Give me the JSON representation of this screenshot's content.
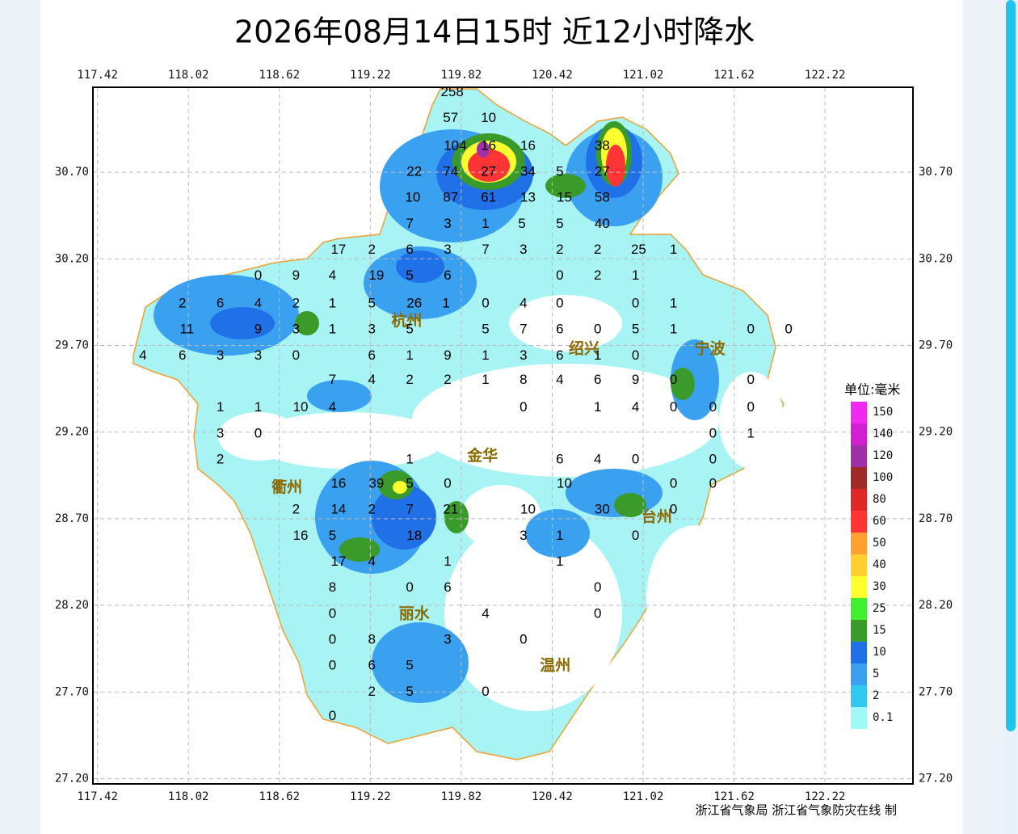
{
  "title": "2026年08月14日15时  近12小时降水",
  "footer": "浙江省气象局 浙江省气象防灾在线 制",
  "map": {
    "type": "station-map",
    "xlim": [
      117.39,
      122.8
    ],
    "ylim": [
      27.17,
      31.19
    ],
    "xticks": [
      117.42,
      118.02,
      118.62,
      119.22,
      119.82,
      120.42,
      121.02,
      121.62,
      122.22
    ],
    "yticks": [
      {
        "value": 30.7,
        "label": "30.70"
      },
      {
        "value": 30.2,
        "label": "30.20"
      },
      {
        "value": 29.7,
        "label": "29.70"
      },
      {
        "value": 29.2,
        "label": "29.20"
      },
      {
        "value": 28.7,
        "label": "28.70"
      },
      {
        "value": 28.2,
        "label": "28.20"
      },
      {
        "value": 27.7,
        "label": "27.70"
      },
      {
        "value": 27.2,
        "label": "27.20"
      }
    ],
    "grid": true,
    "cities": [
      {
        "name": "杭州",
        "lon": 119.46,
        "lat": 29.84
      },
      {
        "name": "绍兴",
        "lon": 120.63,
        "lat": 29.68
      },
      {
        "name": "宁波",
        "lon": 121.46,
        "lat": 29.68
      },
      {
        "name": "金华",
        "lon": 119.96,
        "lat": 29.06
      },
      {
        "name": "衢州",
        "lon": 118.67,
        "lat": 28.88
      },
      {
        "name": "台州",
        "lon": 121.11,
        "lat": 28.71
      },
      {
        "name": "丽水",
        "lon": 119.51,
        "lat": 28.15
      },
      {
        "name": "温州",
        "lon": 120.44,
        "lat": 27.85
      }
    ],
    "stations": [
      [
        119.76,
        31.16,
        258
      ],
      [
        119.75,
        31.01,
        57
      ],
      [
        120.0,
        31.01,
        10
      ],
      [
        119.78,
        30.85,
        104
      ],
      [
        120.0,
        30.85,
        16
      ],
      [
        120.26,
        30.85,
        16
      ],
      [
        120.75,
        30.85,
        38
      ],
      [
        119.51,
        30.7,
        22
      ],
      [
        119.75,
        30.7,
        74
      ],
      [
        120.0,
        30.7,
        27
      ],
      [
        120.26,
        30.7,
        34
      ],
      [
        120.47,
        30.7,
        5
      ],
      [
        120.75,
        30.7,
        27
      ],
      [
        119.5,
        30.55,
        10
      ],
      [
        119.75,
        30.55,
        87
      ],
      [
        120.0,
        30.55,
        61
      ],
      [
        120.26,
        30.55,
        13
      ],
      [
        120.5,
        30.55,
        15
      ],
      [
        120.75,
        30.55,
        58
      ],
      [
        119.48,
        30.4,
        7
      ],
      [
        119.73,
        30.4,
        3
      ],
      [
        119.98,
        30.4,
        1
      ],
      [
        120.22,
        30.4,
        5
      ],
      [
        120.47,
        30.4,
        5
      ],
      [
        120.75,
        30.4,
        40
      ],
      [
        119.01,
        30.25,
        17
      ],
      [
        119.23,
        30.25,
        2
      ],
      [
        119.48,
        30.25,
        6
      ],
      [
        119.73,
        30.25,
        3
      ],
      [
        119.98,
        30.25,
        7
      ],
      [
        120.23,
        30.25,
        3
      ],
      [
        120.47,
        30.25,
        2
      ],
      [
        120.72,
        30.25,
        2
      ],
      [
        120.99,
        30.25,
        25
      ],
      [
        121.22,
        30.25,
        1
      ],
      [
        118.48,
        30.1,
        0
      ],
      [
        118.73,
        30.1,
        9
      ],
      [
        118.97,
        30.1,
        4
      ],
      [
        119.26,
        30.1,
        19
      ],
      [
        119.48,
        30.1,
        5
      ],
      [
        119.73,
        30.1,
        6
      ],
      [
        120.47,
        30.1,
        0
      ],
      [
        120.72,
        30.1,
        2
      ],
      [
        120.97,
        30.1,
        1
      ],
      [
        117.98,
        29.94,
        2
      ],
      [
        118.23,
        29.94,
        6
      ],
      [
        118.48,
        29.94,
        4
      ],
      [
        118.73,
        29.94,
        2
      ],
      [
        118.97,
        29.94,
        1
      ],
      [
        119.23,
        29.94,
        5
      ],
      [
        119.51,
        29.94,
        26
      ],
      [
        119.72,
        29.94,
        1
      ],
      [
        119.98,
        29.94,
        0
      ],
      [
        120.23,
        29.94,
        4
      ],
      [
        120.47,
        29.94,
        0
      ],
      [
        120.97,
        29.94,
        0
      ],
      [
        121.22,
        29.94,
        1
      ],
      [
        118.01,
        29.79,
        11
      ],
      [
        118.48,
        29.79,
        9
      ],
      [
        118.73,
        29.79,
        3
      ],
      [
        118.97,
        29.79,
        1
      ],
      [
        119.23,
        29.79,
        3
      ],
      [
        119.48,
        29.79,
        5
      ],
      [
        119.98,
        29.79,
        5
      ],
      [
        120.23,
        29.79,
        7
      ],
      [
        120.47,
        29.79,
        6
      ],
      [
        120.72,
        29.79,
        0
      ],
      [
        120.97,
        29.79,
        5
      ],
      [
        121.22,
        29.79,
        1
      ],
      [
        121.73,
        29.79,
        0
      ],
      [
        121.98,
        29.79,
        0
      ],
      [
        117.72,
        29.64,
        4
      ],
      [
        117.98,
        29.64,
        6
      ],
      [
        118.23,
        29.64,
        3
      ],
      [
        118.48,
        29.64,
        3
      ],
      [
        118.73,
        29.64,
        0
      ],
      [
        119.23,
        29.64,
        6
      ],
      [
        119.48,
        29.64,
        1
      ],
      [
        119.73,
        29.64,
        9
      ],
      [
        119.98,
        29.64,
        1
      ],
      [
        120.23,
        29.64,
        3
      ],
      [
        120.47,
        29.64,
        6
      ],
      [
        120.72,
        29.64,
        1
      ],
      [
        120.97,
        29.64,
        0
      ],
      [
        118.97,
        29.5,
        7
      ],
      [
        119.23,
        29.5,
        4
      ],
      [
        119.48,
        29.5,
        2
      ],
      [
        119.73,
        29.5,
        2
      ],
      [
        119.98,
        29.5,
        1
      ],
      [
        120.23,
        29.5,
        8
      ],
      [
        120.47,
        29.5,
        4
      ],
      [
        120.72,
        29.5,
        6
      ],
      [
        120.97,
        29.5,
        9
      ],
      [
        121.22,
        29.5,
        0
      ],
      [
        121.73,
        29.5,
        0
      ],
      [
        118.23,
        29.34,
        1
      ],
      [
        118.48,
        29.34,
        1
      ],
      [
        118.76,
        29.34,
        10
      ],
      [
        118.97,
        29.34,
        4
      ],
      [
        120.23,
        29.34,
        0
      ],
      [
        120.72,
        29.34,
        1
      ],
      [
        120.97,
        29.34,
        4
      ],
      [
        121.22,
        29.34,
        0
      ],
      [
        121.48,
        29.34,
        0
      ],
      [
        121.73,
        29.34,
        0
      ],
      [
        118.23,
        29.19,
        3
      ],
      [
        118.48,
        29.19,
        0
      ],
      [
        121.48,
        29.19,
        0
      ],
      [
        121.73,
        29.19,
        1
      ],
      [
        118.23,
        29.04,
        2
      ],
      [
        119.48,
        29.04,
        1
      ],
      [
        120.47,
        29.04,
        6
      ],
      [
        120.72,
        29.04,
        4
      ],
      [
        120.97,
        29.04,
        0
      ],
      [
        121.48,
        29.04,
        0
      ],
      [
        119.01,
        28.9,
        16
      ],
      [
        119.26,
        28.9,
        39
      ],
      [
        119.48,
        28.9,
        5
      ],
      [
        119.73,
        28.9,
        0
      ],
      [
        120.5,
        28.9,
        10
      ],
      [
        121.22,
        28.9,
        0
      ],
      [
        121.48,
        28.9,
        0
      ],
      [
        118.73,
        28.75,
        2
      ],
      [
        119.01,
        28.75,
        14
      ],
      [
        119.23,
        28.75,
        2
      ],
      [
        119.48,
        28.75,
        7
      ],
      [
        119.75,
        28.75,
        21
      ],
      [
        120.26,
        28.75,
        10
      ],
      [
        120.75,
        28.75,
        30
      ],
      [
        121.22,
        28.75,
        0
      ],
      [
        118.76,
        28.6,
        16
      ],
      [
        118.97,
        28.6,
        5
      ],
      [
        119.51,
        28.6,
        18
      ],
      [
        120.23,
        28.6,
        3
      ],
      [
        120.47,
        28.6,
        1
      ],
      [
        120.97,
        28.6,
        0
      ],
      [
        119.01,
        28.45,
        17
      ],
      [
        119.23,
        28.45,
        4
      ],
      [
        119.73,
        28.45,
        1
      ],
      [
        120.47,
        28.45,
        1
      ],
      [
        118.97,
        28.3,
        8
      ],
      [
        119.48,
        28.3,
        0
      ],
      [
        119.73,
        28.3,
        6
      ],
      [
        120.72,
        28.3,
        0
      ],
      [
        118.97,
        28.15,
        0
      ],
      [
        119.98,
        28.15,
        4
      ],
      [
        120.72,
        28.15,
        0
      ],
      [
        118.97,
        28.0,
        0
      ],
      [
        119.23,
        28.0,
        8
      ],
      [
        119.73,
        28.0,
        3
      ],
      [
        120.23,
        28.0,
        0
      ],
      [
        118.97,
        27.85,
        0
      ],
      [
        119.23,
        27.85,
        6
      ],
      [
        119.48,
        27.85,
        5
      ],
      [
        119.23,
        27.7,
        2
      ],
      [
        119.48,
        27.7,
        5
      ],
      [
        119.98,
        27.7,
        0
      ],
      [
        118.97,
        27.56,
        0
      ]
    ]
  },
  "legend": {
    "title": "单位:毫米",
    "levels": [
      {
        "value": 150,
        "color": "#f028f0"
      },
      {
        "value": 140,
        "color": "#d020d0"
      },
      {
        "value": 120,
        "color": "#a030a8"
      },
      {
        "value": 100,
        "color": "#a02a28"
      },
      {
        "value": 80,
        "color": "#e02828"
      },
      {
        "value": 60,
        "color": "#ff3434"
      },
      {
        "value": 50,
        "color": "#ffa030"
      },
      {
        "value": 40,
        "color": "#ffd030"
      },
      {
        "value": 30,
        "color": "#ffff30"
      },
      {
        "value": 25,
        "color": "#40f030"
      },
      {
        "value": 15,
        "color": "#3a9a2a"
      },
      {
        "value": 10,
        "color": "#2070e8"
      },
      {
        "value": 5,
        "color": "#3aa0f0"
      },
      {
        "value": 2,
        "color": "#30c8f0"
      },
      {
        "value": 0.1,
        "color": "#a0f8f8"
      }
    ]
  }
}
